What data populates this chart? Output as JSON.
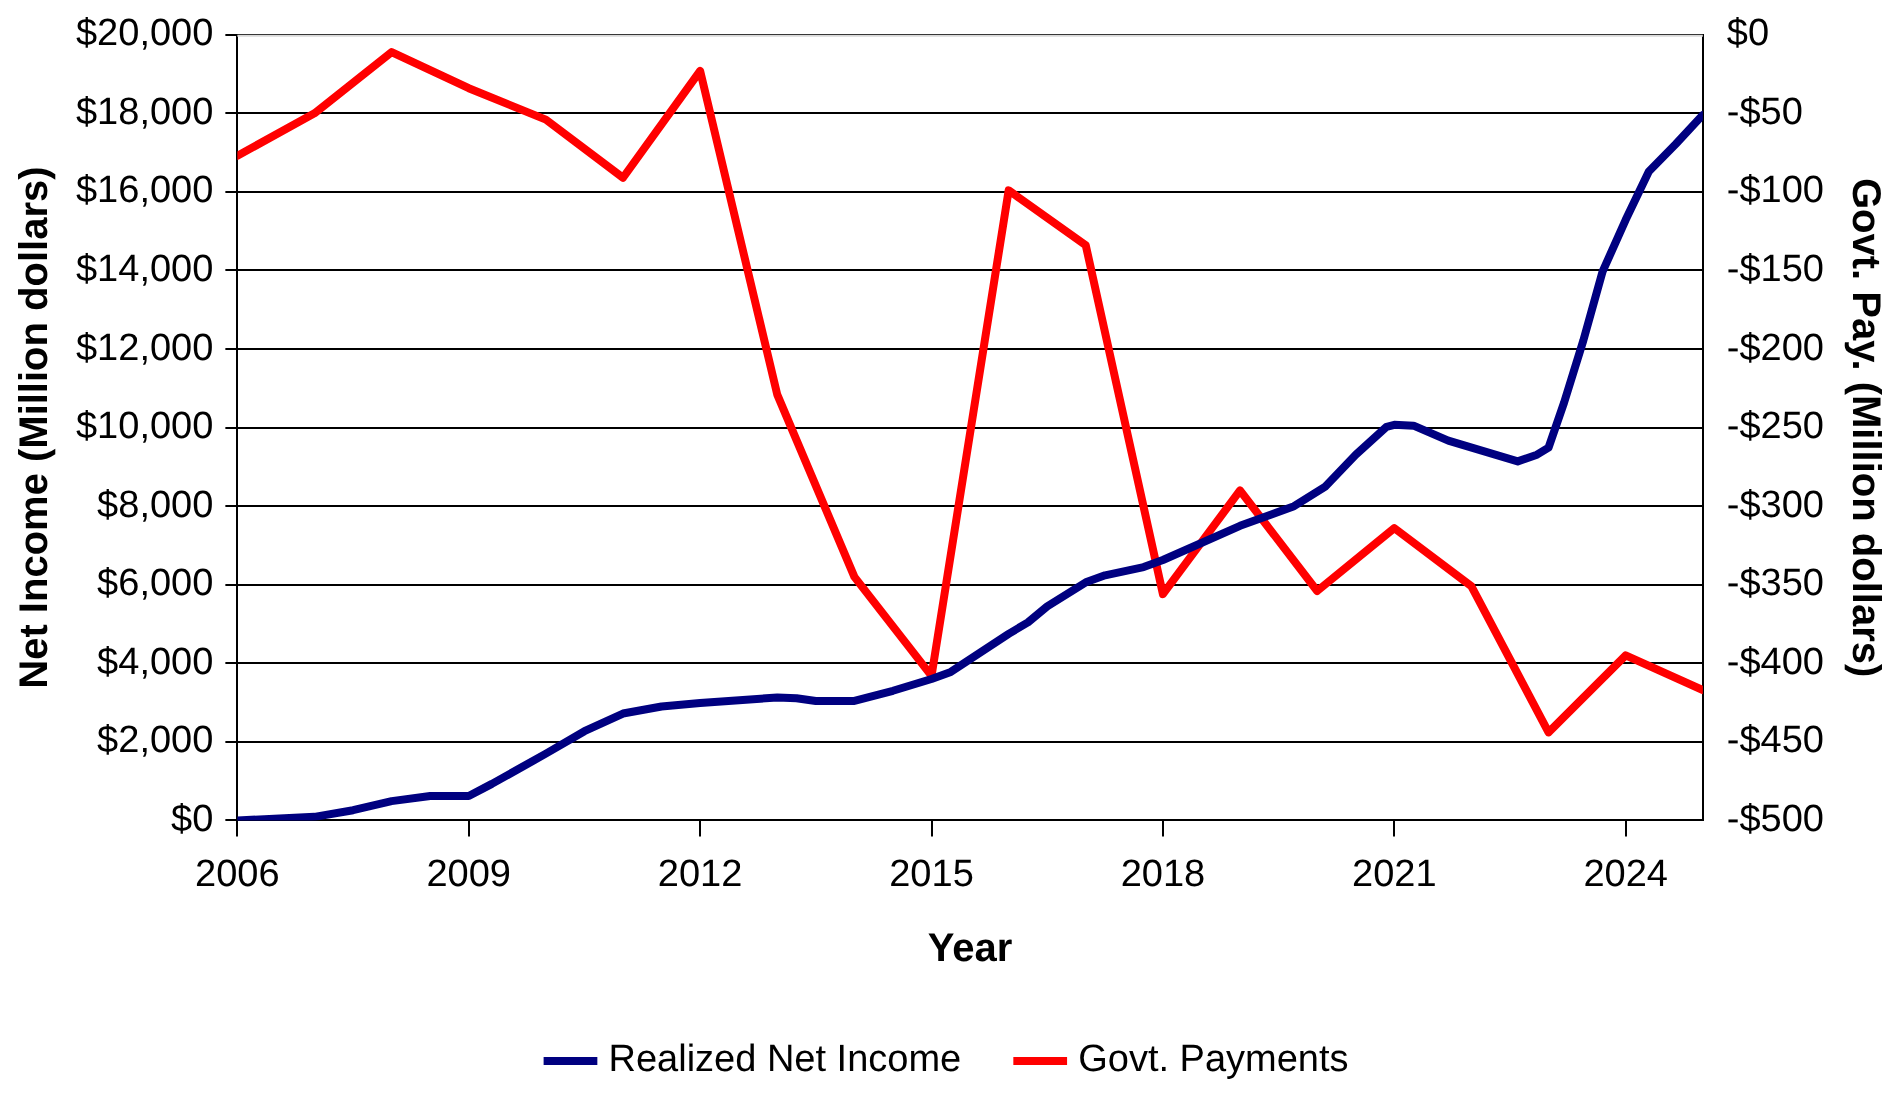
{
  "chart_data": {
    "type": "line",
    "xlabel": "Year",
    "ylabel": "Net Income (Million dollars)",
    "y2label": "Govt. Pay. (Million dollars)",
    "xlim": [
      2006,
      2025
    ],
    "xticks": [
      2006,
      2009,
      2012,
      2015,
      2018,
      2021,
      2024
    ],
    "ylim": [
      0,
      20000
    ],
    "yticks": [
      {
        "value": 0,
        "label": "$0"
      },
      {
        "value": 2000,
        "label": "$2,000"
      },
      {
        "value": 4000,
        "label": "$4,000"
      },
      {
        "value": 6000,
        "label": "$6,000"
      },
      {
        "value": 8000,
        "label": "$8,000"
      },
      {
        "value": 10000,
        "label": "$10,000"
      },
      {
        "value": 12000,
        "label": "$12,000"
      },
      {
        "value": 14000,
        "label": "$14,000"
      },
      {
        "value": 16000,
        "label": "$16,000"
      },
      {
        "value": 18000,
        "label": "$18,000"
      },
      {
        "value": 20000,
        "label": "$20,000"
      }
    ],
    "y2lim": [
      -500,
      0
    ],
    "y2ticks": [
      {
        "value": -500,
        "label": "-$500"
      },
      {
        "value": -450,
        "label": "-$450"
      },
      {
        "value": -400,
        "label": "-$400"
      },
      {
        "value": -350,
        "label": "-$350"
      },
      {
        "value": -300,
        "label": "-$300"
      },
      {
        "value": -250,
        "label": "-$250"
      },
      {
        "value": -200,
        "label": "-$200"
      },
      {
        "value": -150,
        "label": "-$150"
      },
      {
        "value": -100,
        "label": "-$100"
      },
      {
        "value": -50,
        "label": "-$50"
      },
      {
        "value": 0,
        "label": "$0"
      }
    ],
    "grid": "y",
    "legend": "bottom",
    "marker": "none",
    "line_style": "solid",
    "series": [
      {
        "name": "Realized Net Income",
        "color": "#000080",
        "x": [
          2006,
          2007,
          2007.5,
          2008,
          2008.5,
          2009,
          2009.3,
          2010,
          2010.5,
          2011,
          2011.5,
          2012,
          2013,
          2013.25,
          2013.5,
          2014,
          2014.5,
          2015,
          2015.25,
          2016,
          2016.25,
          2016.5,
          2017,
          2017.25,
          2017.75,
          2018,
          2019,
          2019.7,
          2020.1,
          2020.5,
          2020.9,
          2021,
          2021.25,
          2021.7,
          2022.6,
          2022.85,
          2023,
          2023.2,
          2023.45,
          2023.7,
          2024,
          2024.3,
          2024.65,
          2025
        ],
        "values": [
          0,
          90,
          260,
          490,
          620,
          620,
          930,
          1700,
          2270,
          2720,
          2900,
          2990,
          3130,
          3110,
          3040,
          3040,
          3300,
          3600,
          3780,
          4750,
          5040,
          5450,
          6060,
          6240,
          6450,
          6630,
          7500,
          8000,
          8490,
          9310,
          10020,
          10070,
          10050,
          9670,
          9140,
          9310,
          9490,
          10630,
          12210,
          13970,
          15290,
          16520,
          17220,
          17960
        ]
      },
      {
        "name": "Govt. Payments",
        "color": "#ff0000",
        "axis": "y2",
        "x": [
          2006,
          2007,
          2008,
          2009,
          2010,
          2011,
          2012,
          2013,
          2014,
          2015,
          2016,
          2017,
          2018,
          2019,
          2020,
          2021,
          2022,
          2023,
          2024,
          2025
        ],
        "values": [
          -77,
          -50,
          -11,
          -34,
          -54,
          -91,
          -23,
          -229,
          -345,
          -408,
          -99,
          -134,
          -356,
          -290,
          -354,
          -314,
          -351,
          -444,
          -395,
          -417
        ]
      }
    ]
  }
}
